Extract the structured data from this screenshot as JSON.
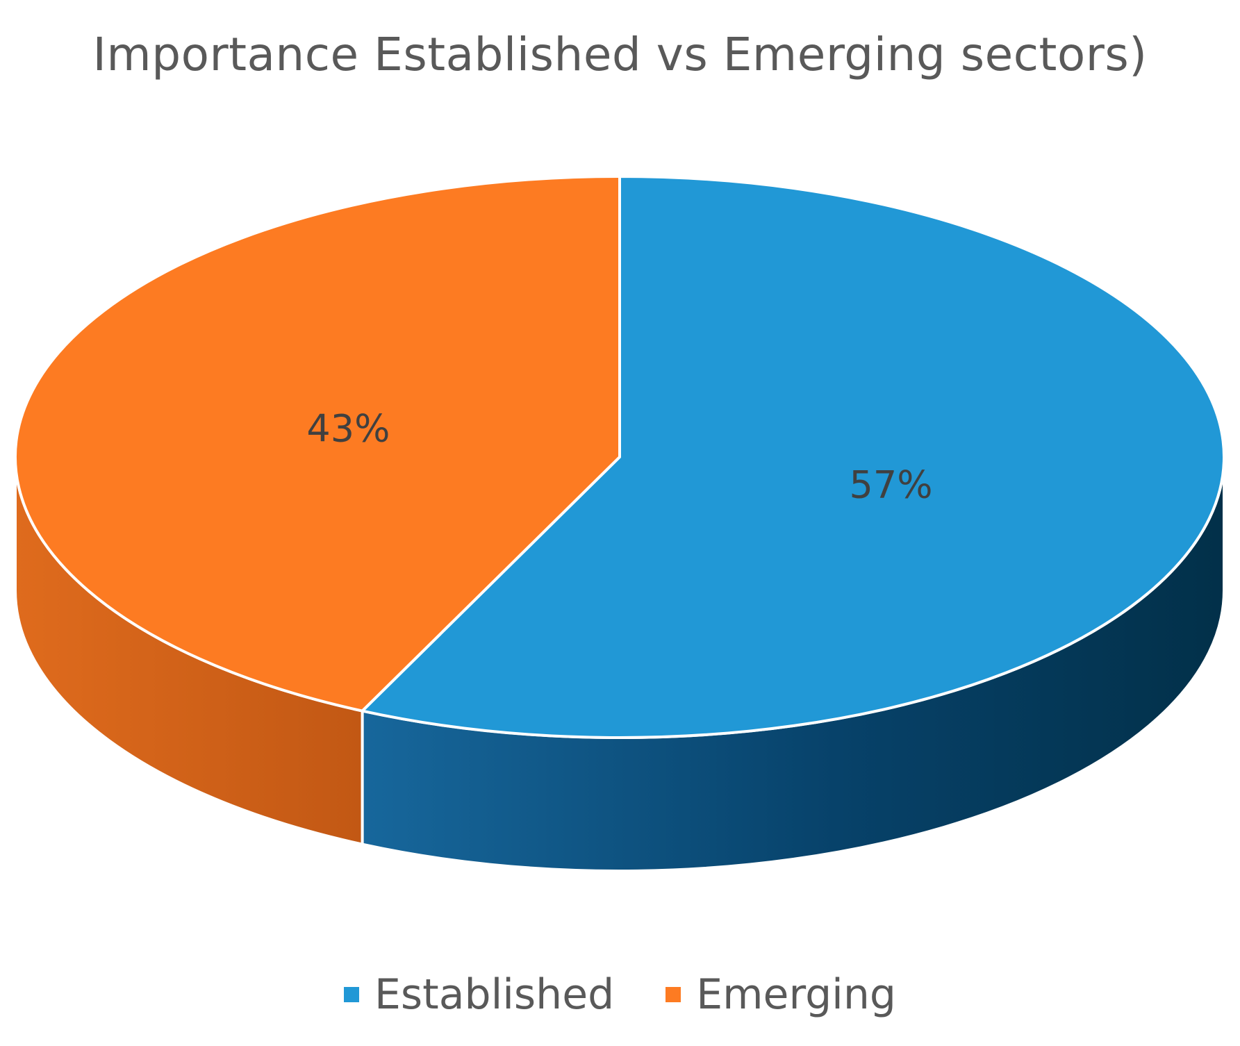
{
  "chart_data": {
    "type": "pie",
    "title": "Importance Established vs Emerging sectors)",
    "labels": [
      "Established",
      "Emerging"
    ],
    "values": [
      57,
      43
    ],
    "data_labels": [
      "57%",
      "43%"
    ],
    "colors": {
      "Established": "#2198d6",
      "Emerging": "#fd7b22"
    },
    "style": "3d",
    "legend": "bottom"
  }
}
